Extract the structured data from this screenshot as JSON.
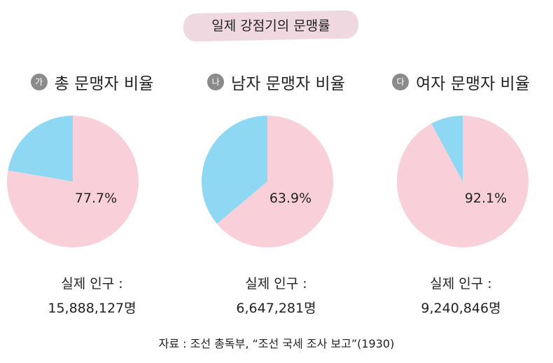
{
  "title": "일제 강점기의 문맹률",
  "colors": {
    "illiterate": "#f9d0d9",
    "literate": "#8ed8f4",
    "badge": "#efd8df",
    "marker": "#8b8b8b"
  },
  "panels": [
    {
      "marker": "가",
      "heading": "총 문맹자 비율",
      "pop_label": "실제 인구 :",
      "pop_value": "15,888,127명",
      "pct_label": "77.7%"
    },
    {
      "marker": "나",
      "heading": "남자 문맹자 비율",
      "pop_label": "실제 인구 :",
      "pop_value": "6,647,281명",
      "pct_label": "63.9%"
    },
    {
      "marker": "다",
      "heading": "여자 문맹자 비율",
      "pop_label": "실제 인구 :",
      "pop_value": "9,240,846명",
      "pct_label": "92.1%"
    }
  ],
  "chart_data": [
    {
      "type": "pie",
      "title": "총 문맹자 비율",
      "slices": [
        {
          "value": 77.7,
          "label": "77.7%"
        },
        {
          "value": 22.3,
          "label": ""
        }
      ]
    },
    {
      "type": "pie",
      "title": "남자 문맹자 비율",
      "slices": [
        {
          "value": 63.9,
          "label": "63.9%"
        },
        {
          "value": 36.1,
          "label": ""
        }
      ]
    },
    {
      "type": "pie",
      "title": "여자 문맹자 비율",
      "slices": [
        {
          "value": 92.1,
          "label": "92.1%"
        },
        {
          "value": 7.9,
          "label": ""
        }
      ]
    }
  ],
  "source": "자료 : 조선 총독부, “조선 국세 조사 보고”(1930)"
}
